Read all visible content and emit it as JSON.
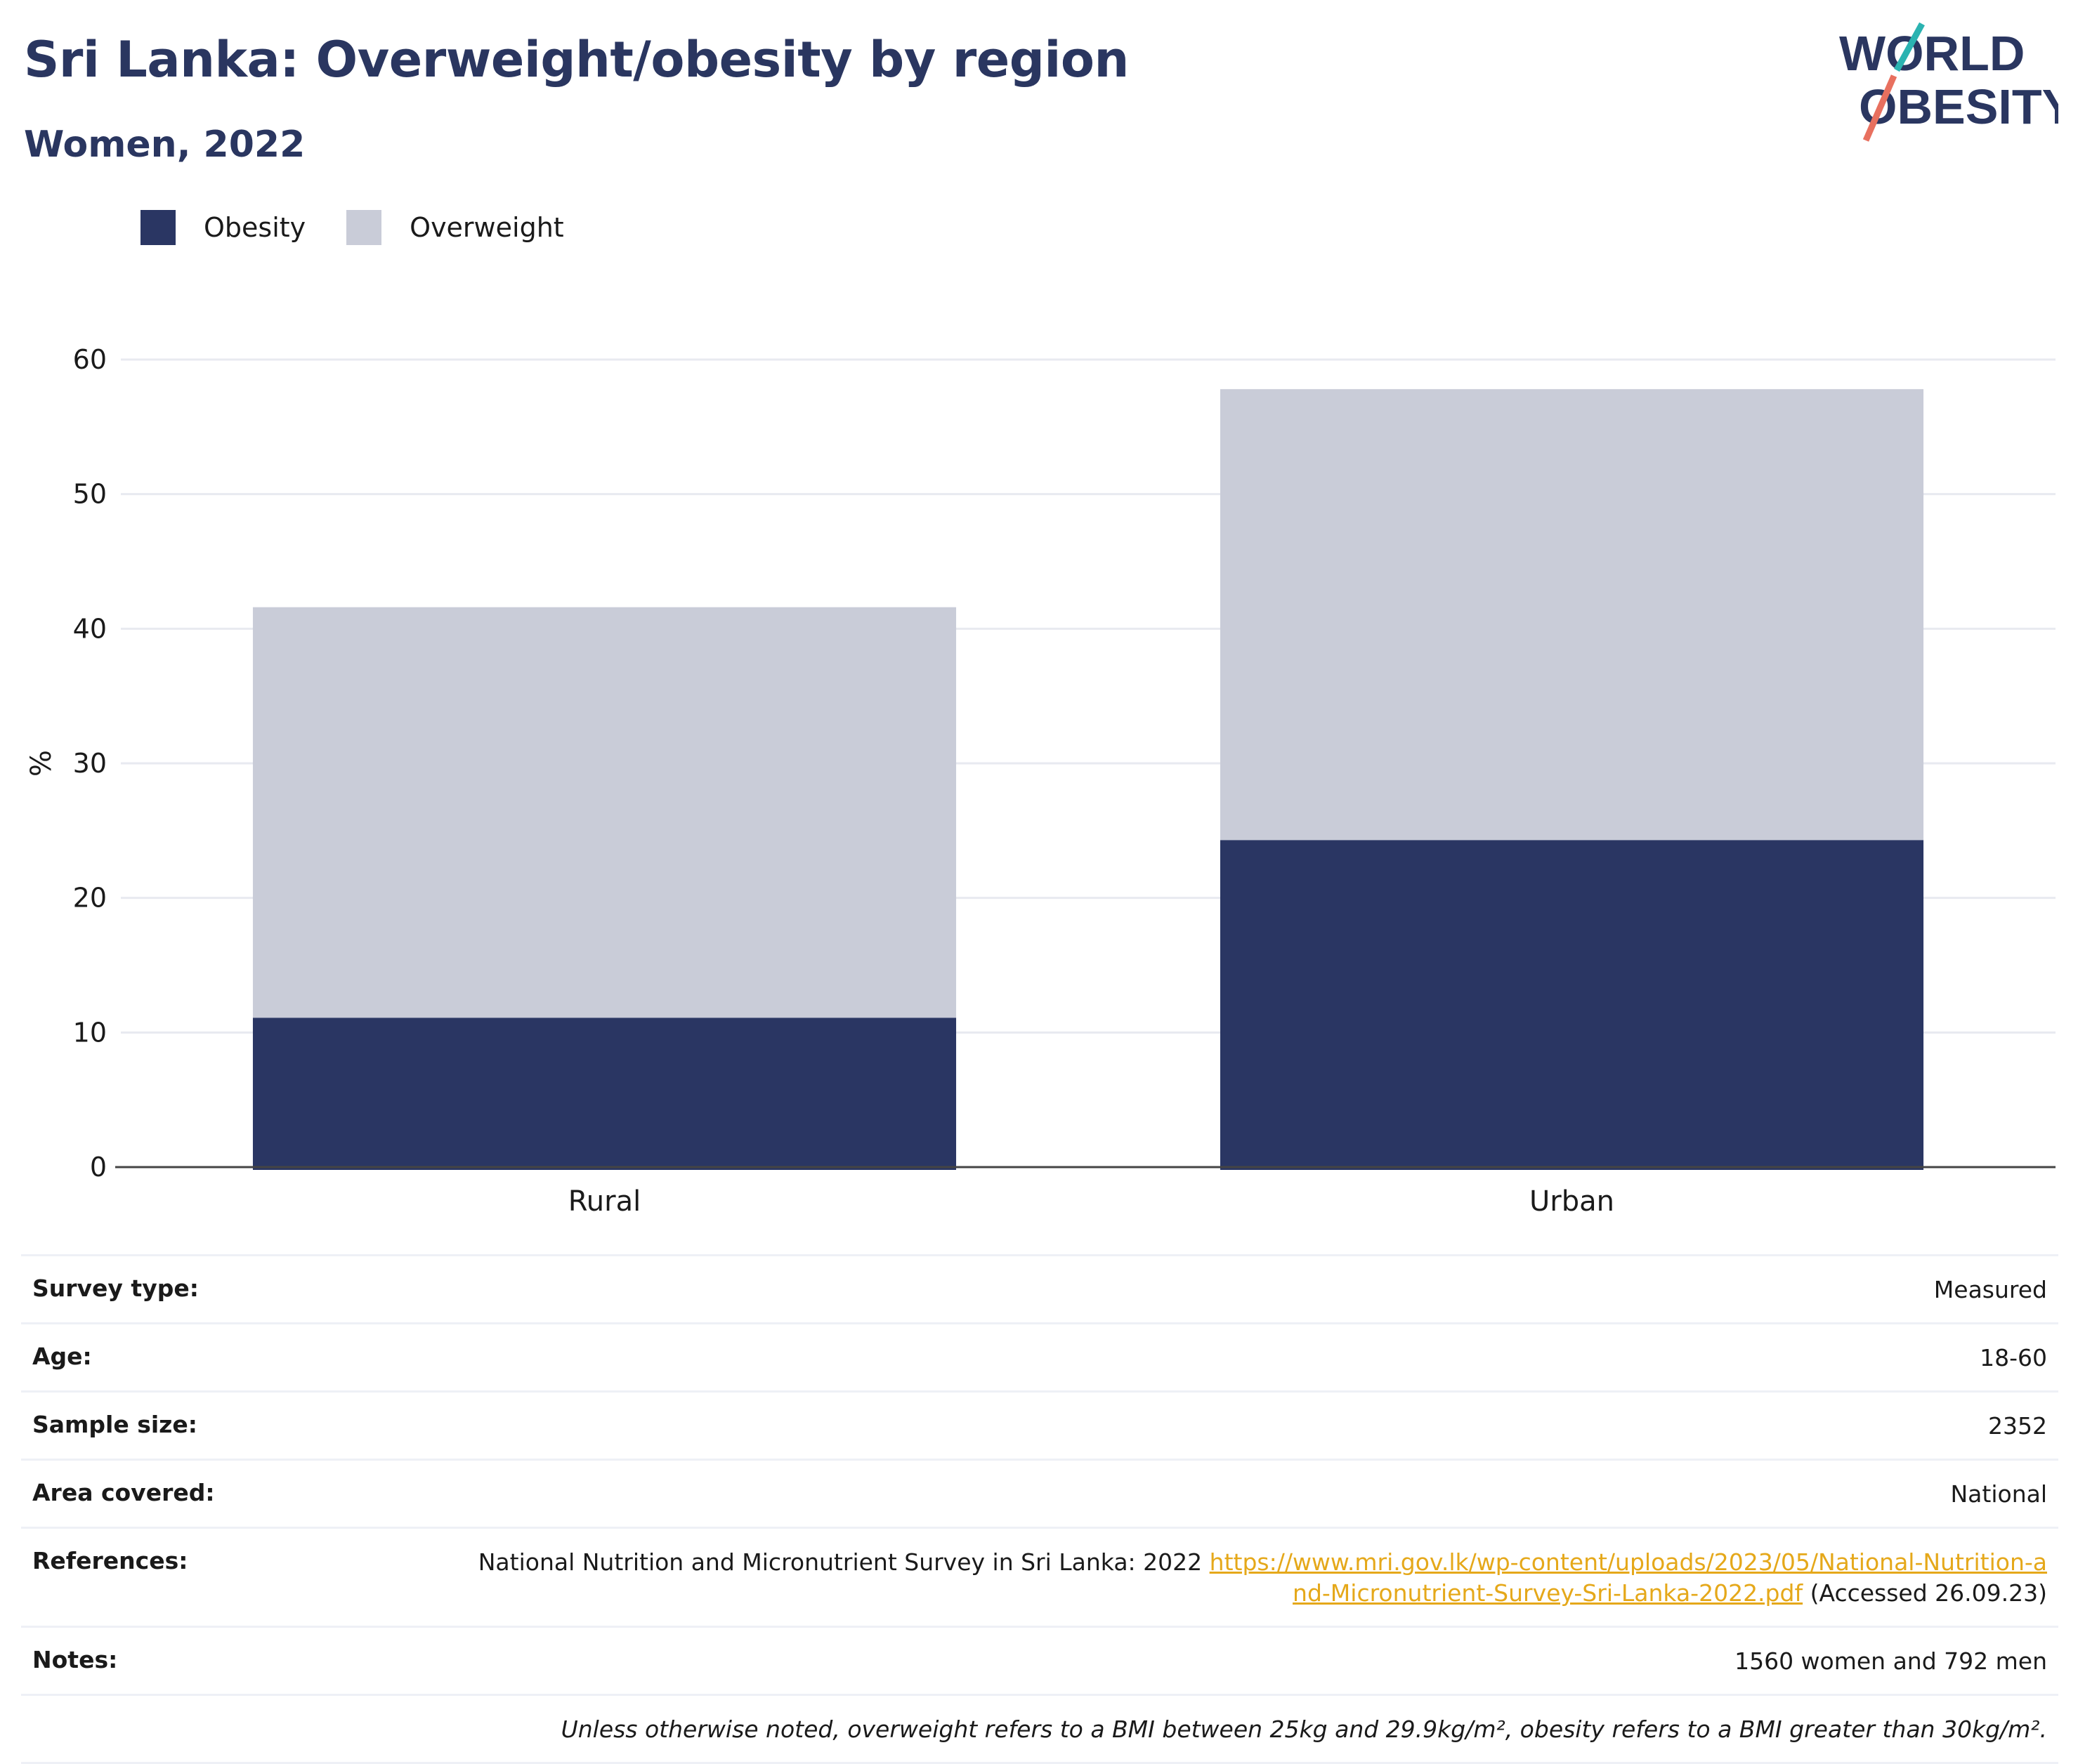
{
  "header": {
    "title": "Sri Lanka: Overweight/obesity by region",
    "subtitle": "Women, 2022",
    "logo_line1": "WORLD",
    "logo_line2": "OBESITY"
  },
  "legend": {
    "obesity": "Obesity",
    "overweight": "Overweight"
  },
  "colors": {
    "obesity": "#2a3663",
    "overweight": "#c9ccd8",
    "link": "#e5a81a",
    "logo_text": "#2a3660",
    "logo_teal": "#2bb3b1",
    "logo_coral": "#e8705f"
  },
  "chart_data": {
    "type": "bar",
    "stacked": true,
    "categories": [
      "Rural",
      "Urban"
    ],
    "series": [
      {
        "name": "Obesity",
        "values": [
          11.1,
          24.3
        ]
      },
      {
        "name": "Overweight",
        "values": [
          30.5,
          33.5
        ]
      }
    ],
    "ylabel": "%",
    "ylim": [
      0,
      60
    ],
    "yticks": [
      0,
      10,
      20,
      30,
      40,
      50,
      60
    ],
    "grid": true,
    "legend_position": "top-left"
  },
  "info": {
    "survey_type_label": "Survey type:",
    "survey_type_value": "Measured",
    "age_label": "Age:",
    "age_value": "18-60",
    "sample_size_label": "Sample size:",
    "sample_size_value": "2352",
    "area_label": "Area covered:",
    "area_value": "National",
    "references_label": "References:",
    "references_text": "National Nutrition and Micronutrient Survey in Sri Lanka: 2022",
    "references_link": "https://www.mri.gov.lk/wp-content/uploads/2023/05/National-Nutrition-and-Micronutrient-Survey-Sri-Lanka-2022.pdf",
    "references_accessed": "(Accessed 26.09.23)",
    "notes_label": "Notes:",
    "notes_value": "1560 women and 792 men",
    "footnote": "Unless otherwise noted, overweight refers to a BMI between 25kg and 29.9kg/m², obesity refers to a BMI greater than 30kg/m²."
  }
}
